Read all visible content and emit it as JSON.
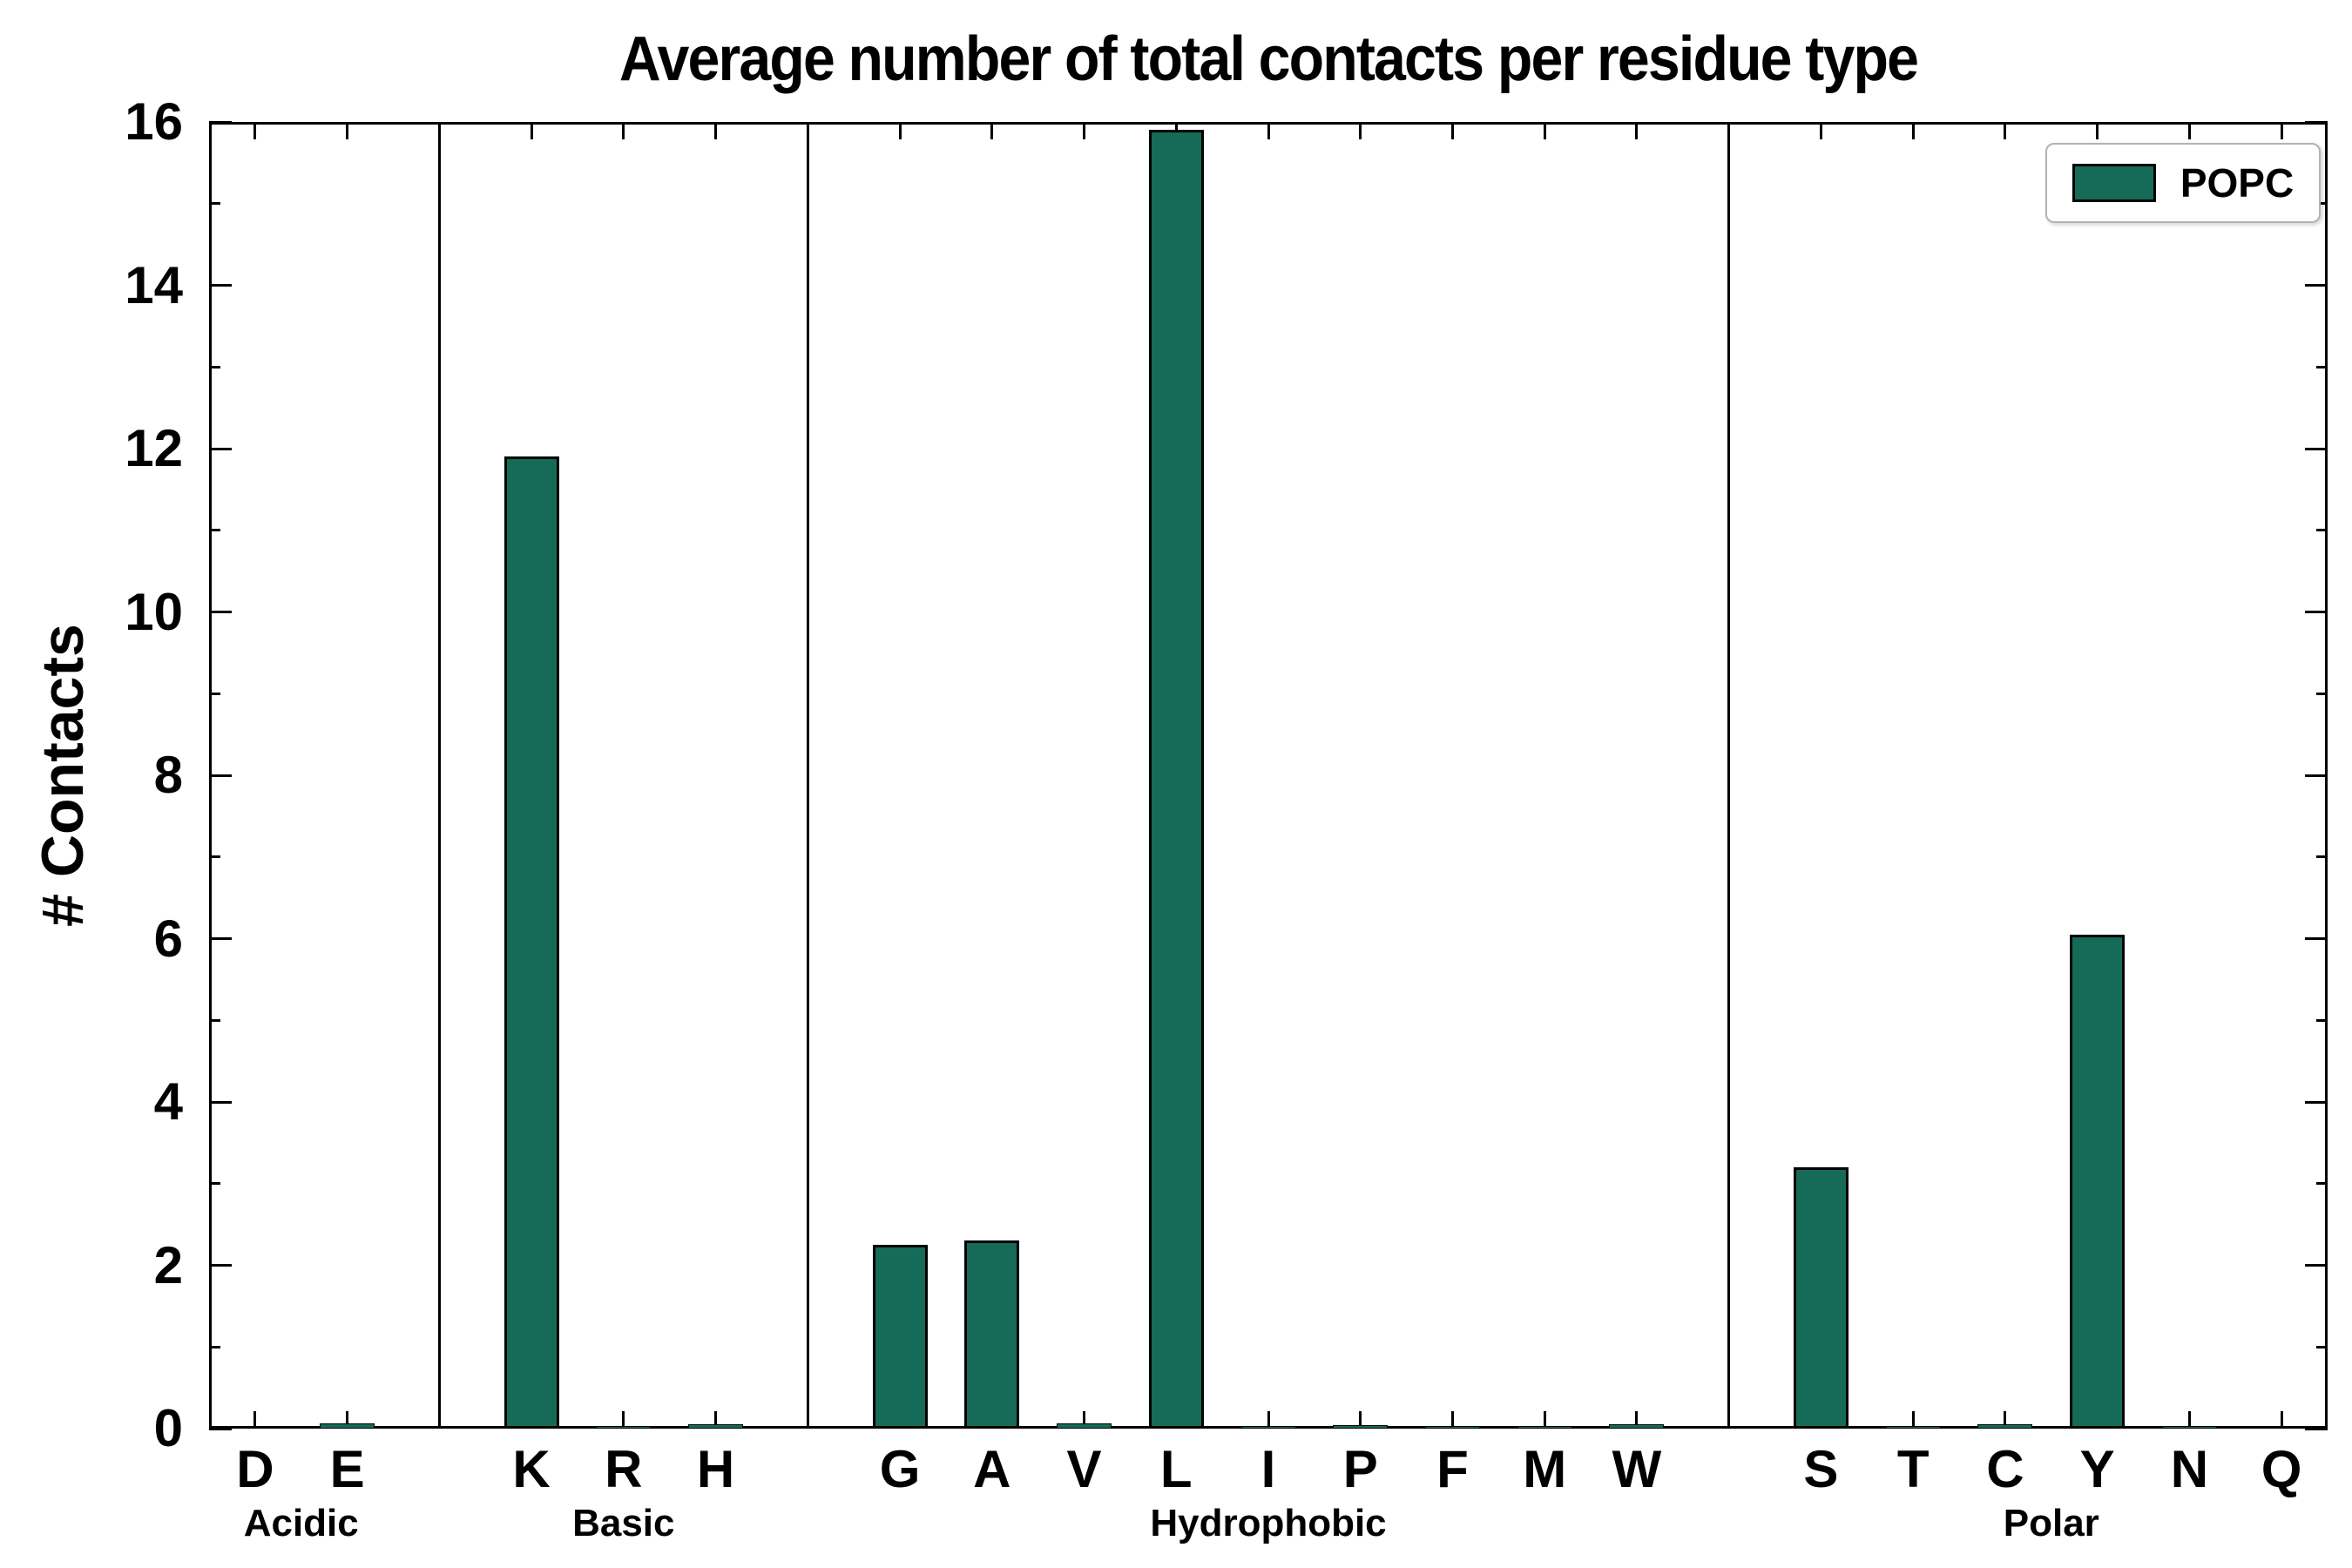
{
  "chart_data": {
    "type": "bar",
    "title": "Average number of total contacts per residue type",
    "ylabel": "# Contacts",
    "xlabel": "",
    "ylim": [
      0,
      16
    ],
    "yticks": [
      0,
      2,
      4,
      6,
      8,
      10,
      12,
      14,
      16
    ],
    "grid": false,
    "legend": {
      "label": "POPC",
      "position": "upper right"
    },
    "bar_color": "#156a58",
    "bar_edge_color": "#000000",
    "groups": [
      {
        "label": "Acidic",
        "categories": [
          "D",
          "E"
        ],
        "values": [
          0.02,
          0.06
        ]
      },
      {
        "label": "Basic",
        "categories": [
          "K",
          "R",
          "H"
        ],
        "values": [
          11.9,
          0.03,
          0.05
        ]
      },
      {
        "label": "Hydrophobic",
        "categories": [
          "G",
          "A",
          "V",
          "L",
          "I",
          "P",
          "F",
          "M",
          "W"
        ],
        "values": [
          2.25,
          2.3,
          0.06,
          15.9,
          0.03,
          0.04,
          0.03,
          0.03,
          0.05
        ]
      },
      {
        "label": "Polar",
        "categories": [
          "S",
          "T",
          "C",
          "Y",
          "N",
          "Q"
        ],
        "values": [
          3.2,
          0.03,
          0.05,
          6.05,
          0.03,
          0.02
        ]
      }
    ]
  }
}
